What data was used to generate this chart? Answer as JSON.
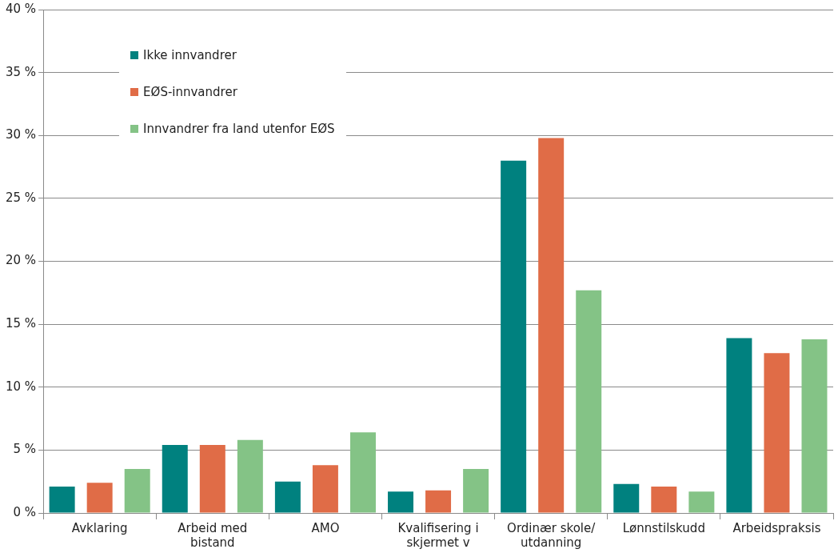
{
  "chart_data": {
    "type": "bar",
    "categories": [
      "Avklaring",
      "Arbeid med bistand",
      "AMO",
      "Kvalifisering i skjermet v",
      "Ordinær skole/ utdanning",
      "Lønnstilskudd",
      "Arbeidspraksis"
    ],
    "series": [
      {
        "name": "Ikke innvandrer",
        "color": "#00817f",
        "values": [
          2.1,
          5.4,
          2.5,
          1.7,
          28.0,
          2.3,
          13.9
        ]
      },
      {
        "name": "EØS-innvandrer",
        "color": "#e06c47",
        "values": [
          2.4,
          5.4,
          3.8,
          1.8,
          29.8,
          2.1,
          12.7
        ]
      },
      {
        "name": "Innvandrer fra land utenfor EØS",
        "color": "#84c386",
        "values": [
          3.5,
          5.8,
          6.4,
          3.5,
          17.7,
          1.7,
          13.8
        ]
      }
    ],
    "ylim": [
      0,
      40
    ],
    "yticks": [
      {
        "value": 0,
        "label": "0 %"
      },
      {
        "value": 5,
        "label": "5 %"
      },
      {
        "value": 10,
        "label": "10 %"
      },
      {
        "value": 15,
        "label": "15 %"
      },
      {
        "value": 20,
        "label": "20 %"
      },
      {
        "value": 25,
        "label": "25 %"
      },
      {
        "value": 30,
        "label": "30 %"
      },
      {
        "value": 35,
        "label": "35 %"
      },
      {
        "value": 40,
        "label": "40 %"
      }
    ],
    "grid": "y",
    "legend": "top left"
  }
}
